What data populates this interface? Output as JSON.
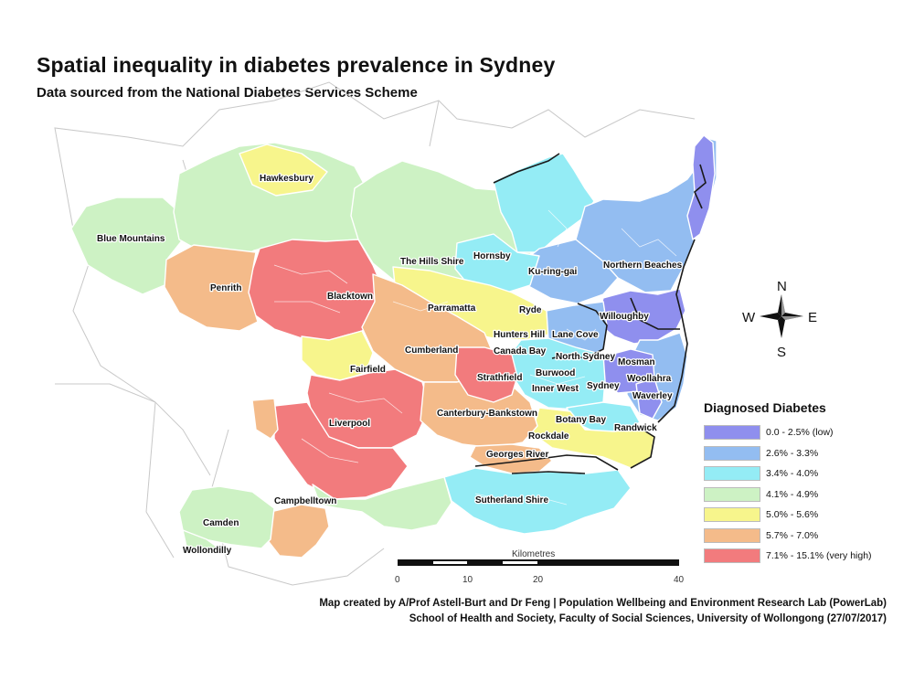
{
  "title": "Spatial inequality in diabetes prevalence in Sydney",
  "subtitle": "Data sourced from the National Diabetes Services Scheme",
  "palette": {
    "c1": "#8f8fee",
    "c2": "#93bdf1",
    "c3": "#94ecf5",
    "c4": "#cdf2c4",
    "c5": "#f7f58c",
    "c6": "#f4bb8a",
    "c7": "#f27b7d"
  },
  "places": [
    "Hawkesbury",
    "Blue Mountains",
    "Penrith",
    "Blacktown",
    "The Hills Shire",
    "Hornsby",
    "Ku-ring-gai",
    "Northern Beaches",
    "Parramatta",
    "Ryde",
    "Willoughby",
    "Hunters Hill",
    "Lane Cove",
    "Canada Bay",
    "North Sydney",
    "Mosman",
    "Cumberland",
    "Fairfield",
    "Strathfield",
    "Burwood",
    "Inner West",
    "Sydney",
    "Woollahra",
    "Waverley",
    "Canterbury-Bankstown",
    "Botany Bay",
    "Randwick",
    "Liverpool",
    "Rockdale",
    "Georges River",
    "Sutherland Shire",
    "Campbelltown",
    "Camden",
    "Wollondilly"
  ],
  "compass": {
    "n": "N",
    "s": "S",
    "e": "E",
    "w": "W"
  },
  "scale": {
    "unit": "Kilometres",
    "ticks": [
      "0",
      "10",
      "20",
      "40"
    ]
  },
  "legend": {
    "title": "Diagnosed Diabetes",
    "items": [
      {
        "label": "0.0 - 2.5% (low)",
        "color": "#8f8fee"
      },
      {
        "label": "2.6% - 3.3%",
        "color": "#93bdf1"
      },
      {
        "label": "3.4% - 4.0%",
        "color": "#94ecf5"
      },
      {
        "label": "4.1% - 4.9%",
        "color": "#cdf2c4"
      },
      {
        "label": "5.0% - 5.6%",
        "color": "#f7f58c"
      },
      {
        "label": "5.7% - 7.0%",
        "color": "#f4bb8a"
      },
      {
        "label": "7.1% - 15.1% (very high)",
        "color": "#f27b7d"
      }
    ]
  },
  "credits": {
    "line1": "Map created by A/Prof Astell-Burt and Dr Feng | Population Wellbeing and Environment Research Lab (PowerLab)",
    "line2": "School of Health and Society, Faculty of Social Sciences, University of Wollongong (27/07/2017)"
  }
}
